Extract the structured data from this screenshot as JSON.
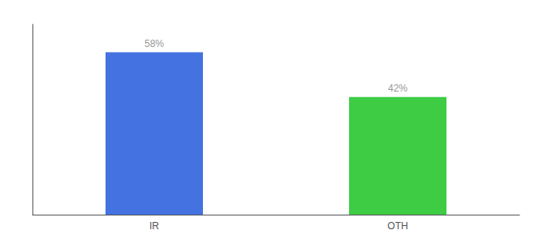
{
  "chart_data": {
    "type": "bar",
    "categories": [
      "IR",
      "OTH"
    ],
    "values": [
      58,
      42
    ],
    "value_labels": [
      "58%",
      "42%"
    ],
    "colors": [
      "#4472e0",
      "#3dcc44"
    ],
    "ylim": [
      0,
      68
    ],
    "data_labels": true,
    "tick_labels": "x",
    "grid": false
  }
}
